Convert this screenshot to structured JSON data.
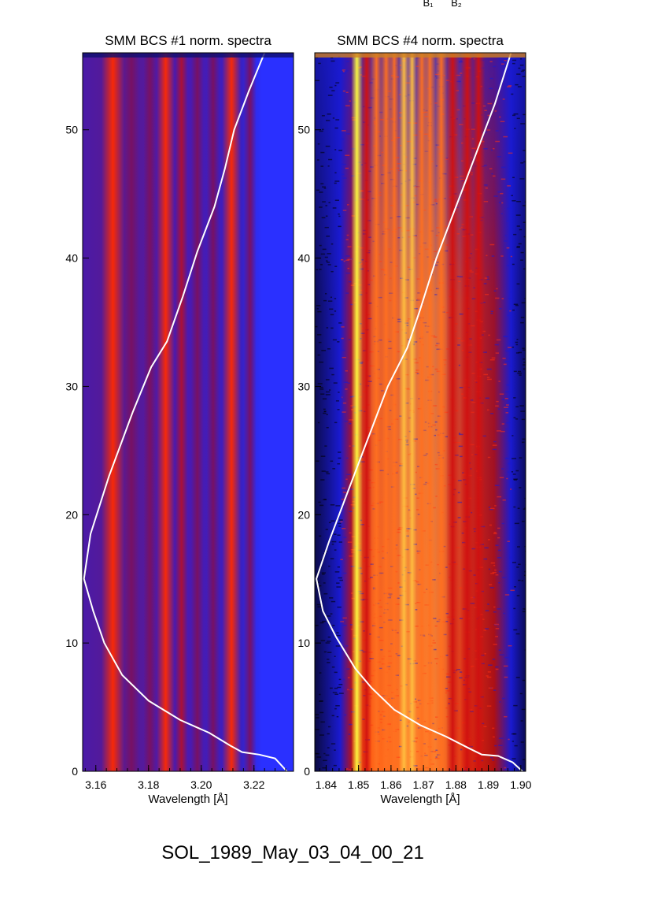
{
  "header_labels": {
    "b1": "B₁",
    "b2": "B₂"
  },
  "caption": "SOL_1989_May_03_04_00_21",
  "chart_data": [
    {
      "type": "heatmap",
      "title": "SMM BCS #1 norm. spectra",
      "xlabel": "Wavelength [Å]",
      "ylabel": "",
      "xlim": [
        3.155,
        3.235
      ],
      "ylim": [
        0,
        56
      ],
      "x_ticks": [
        3.16,
        3.18,
        3.2,
        3.22
      ],
      "x_tick_labels": [
        "3.16",
        "3.18",
        "3.20",
        "3.22"
      ],
      "y_ticks": [
        0,
        10,
        20,
        30,
        40,
        50
      ],
      "y_tick_labels": [
        "0",
        "10",
        "20",
        "30",
        "40",
        "50"
      ],
      "colormap": [
        "#1a1aff",
        "#3a1ab0",
        "#8a1060",
        "#d01414",
        "#ff2a00"
      ],
      "background_color": "#2f1fd0",
      "spectral_lines": [
        {
          "x": 3.1665,
          "strength": 1.0,
          "width": 0.0022
        },
        {
          "x": 3.1735,
          "strength": 0.35,
          "width": 0.0015
        },
        {
          "x": 3.1805,
          "strength": 0.45,
          "width": 0.0012
        },
        {
          "x": 3.1865,
          "strength": 0.75,
          "width": 0.0017
        },
        {
          "x": 3.1925,
          "strength": 0.5,
          "width": 0.0012
        },
        {
          "x": 3.1985,
          "strength": 0.45,
          "width": 0.0012
        },
        {
          "x": 3.2045,
          "strength": 0.45,
          "width": 0.0012
        },
        {
          "x": 3.2115,
          "strength": 0.95,
          "width": 0.0018
        },
        {
          "x": 3.2185,
          "strength": 0.3,
          "width": 0.0012
        }
      ],
      "light_curve": {
        "color": "#ffffff",
        "x": [
          3.2325,
          3.228,
          3.222,
          3.2155,
          3.211,
          3.203,
          3.192,
          3.18,
          3.17,
          3.1632,
          3.159,
          3.1555,
          3.158,
          3.165,
          3.174,
          3.181,
          3.187,
          3.193,
          3.1985,
          3.205,
          3.209,
          3.2125,
          3.218,
          3.224
        ],
        "y": [
          0,
          1.0,
          1.3,
          1.5,
          2.0,
          3.0,
          4.0,
          5.5,
          7.5,
          10.0,
          12.5,
          15.0,
          18.5,
          23.0,
          28.0,
          31.5,
          33.5,
          37.0,
          40.5,
          44.0,
          47.0,
          50.0,
          53.0,
          56.0
        ]
      }
    },
    {
      "type": "heatmap",
      "title": "SMM BCS #4 norm. spectra",
      "xlabel": "Wavelength [Å]",
      "ylabel": "",
      "xlim": [
        1.8365,
        1.9015
      ],
      "ylim": [
        0,
        56
      ],
      "x_ticks": [
        1.84,
        1.85,
        1.86,
        1.87,
        1.88,
        1.89,
        1.9
      ],
      "x_tick_labels": [
        "1.84",
        "1.85",
        "1.86",
        "1.87",
        "1.88",
        "1.89",
        "1.90"
      ],
      "y_ticks": [
        0,
        10,
        20,
        30,
        40,
        50
      ],
      "y_tick_labels": [
        "0",
        "10",
        "20",
        "30",
        "40",
        "50"
      ],
      "colormap": [
        "#05051a",
        "#1a1ad0",
        "#c81010",
        "#ff5a00",
        "#ffb030",
        "#ffff40"
      ],
      "background_color": "#1a1ad0",
      "spectral_lines": [
        {
          "x": 1.8495,
          "strength": 1.0,
          "width": 0.0009
        },
        {
          "x": 1.8525,
          "strength": 0.55,
          "width": 0.0008
        },
        {
          "x": 1.8555,
          "strength": 0.7,
          "width": 0.0009
        },
        {
          "x": 1.8585,
          "strength": 0.75,
          "width": 0.0009
        },
        {
          "x": 1.861,
          "strength": 0.8,
          "width": 0.0008
        },
        {
          "x": 1.864,
          "strength": 0.85,
          "width": 0.0008
        },
        {
          "x": 1.8665,
          "strength": 0.9,
          "width": 0.0007
        },
        {
          "x": 1.8695,
          "strength": 0.8,
          "width": 0.0009
        },
        {
          "x": 1.872,
          "strength": 0.75,
          "width": 0.0009
        },
        {
          "x": 1.8755,
          "strength": 0.7,
          "width": 0.0009
        },
        {
          "x": 1.879,
          "strength": 0.6,
          "width": 0.001
        },
        {
          "x": 1.8835,
          "strength": 0.55,
          "width": 0.001
        },
        {
          "x": 1.887,
          "strength": 0.45,
          "width": 0.001
        }
      ],
      "light_curve": {
        "color": "#ffffff",
        "x": [
          1.9005,
          1.8975,
          1.893,
          1.888,
          1.884,
          1.877,
          1.869,
          1.861,
          1.854,
          1.849,
          1.843,
          1.839,
          1.837,
          1.841,
          1.847,
          1.853,
          1.859,
          1.863,
          1.865,
          1.869,
          1.874,
          1.88,
          1.886,
          1.892,
          1.897
        ],
        "y": [
          0,
          0.7,
          1.2,
          1.3,
          1.8,
          2.7,
          3.6,
          4.8,
          6.5,
          8.0,
          10.5,
          12.5,
          15.0,
          18.0,
          22.0,
          26.0,
          30.0,
          32.0,
          33.0,
          36.0,
          40.0,
          44.0,
          48.0,
          52.0,
          56.0
        ]
      }
    }
  ]
}
